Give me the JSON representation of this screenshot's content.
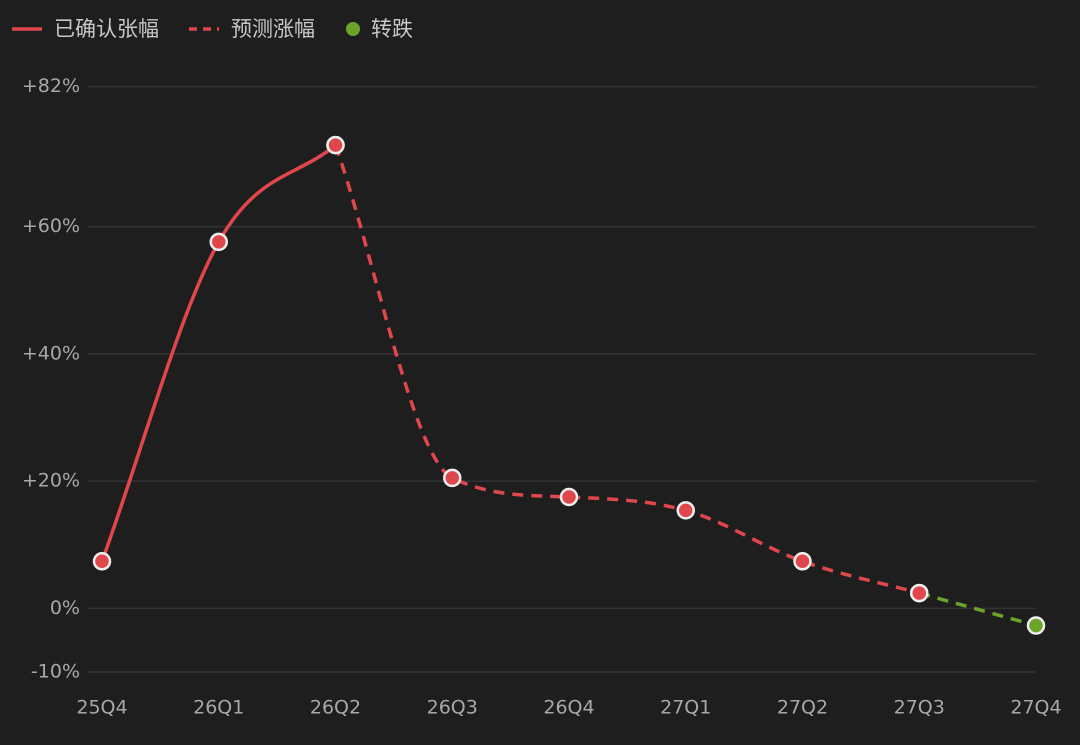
{
  "chart_data": {
    "type": "line",
    "categories": [
      "25Q4",
      "26Q1",
      "26Q2",
      "26Q3",
      "26Q4",
      "27Q1",
      "27Q2",
      "27Q3",
      "27Q4"
    ],
    "series": [
      {
        "name": "已确认张幅",
        "color": "#e0474c",
        "dashed": false,
        "legend_symbol": "line",
        "values": [
          7.4,
          57.6,
          72.8,
          null,
          null,
          null,
          null,
          null,
          null
        ]
      },
      {
        "name": "预测涨幅",
        "color": "#e0474c",
        "dashed": true,
        "legend_symbol": "line",
        "values": [
          null,
          null,
          72.8,
          20.5,
          17.5,
          15.4,
          7.4,
          2.4,
          null
        ]
      },
      {
        "name": "转跌",
        "color": "#6aa52a",
        "dashed": true,
        "legend_symbol": "dot",
        "values": [
          null,
          null,
          null,
          null,
          null,
          null,
          null,
          2.4,
          -2.7
        ]
      }
    ],
    "ylim": [
      -10,
      82
    ],
    "yticks": [
      {
        "value": -10,
        "label": "-10%"
      },
      {
        "value": 0,
        "label": "0%"
      },
      {
        "value": 20,
        "label": "+20%"
      },
      {
        "value": 40,
        "label": "+40%"
      },
      {
        "value": 60,
        "label": "+60%"
      },
      {
        "value": 82,
        "label": "+82%"
      }
    ],
    "grid": true,
    "smooth": true,
    "legend": "top-left"
  }
}
